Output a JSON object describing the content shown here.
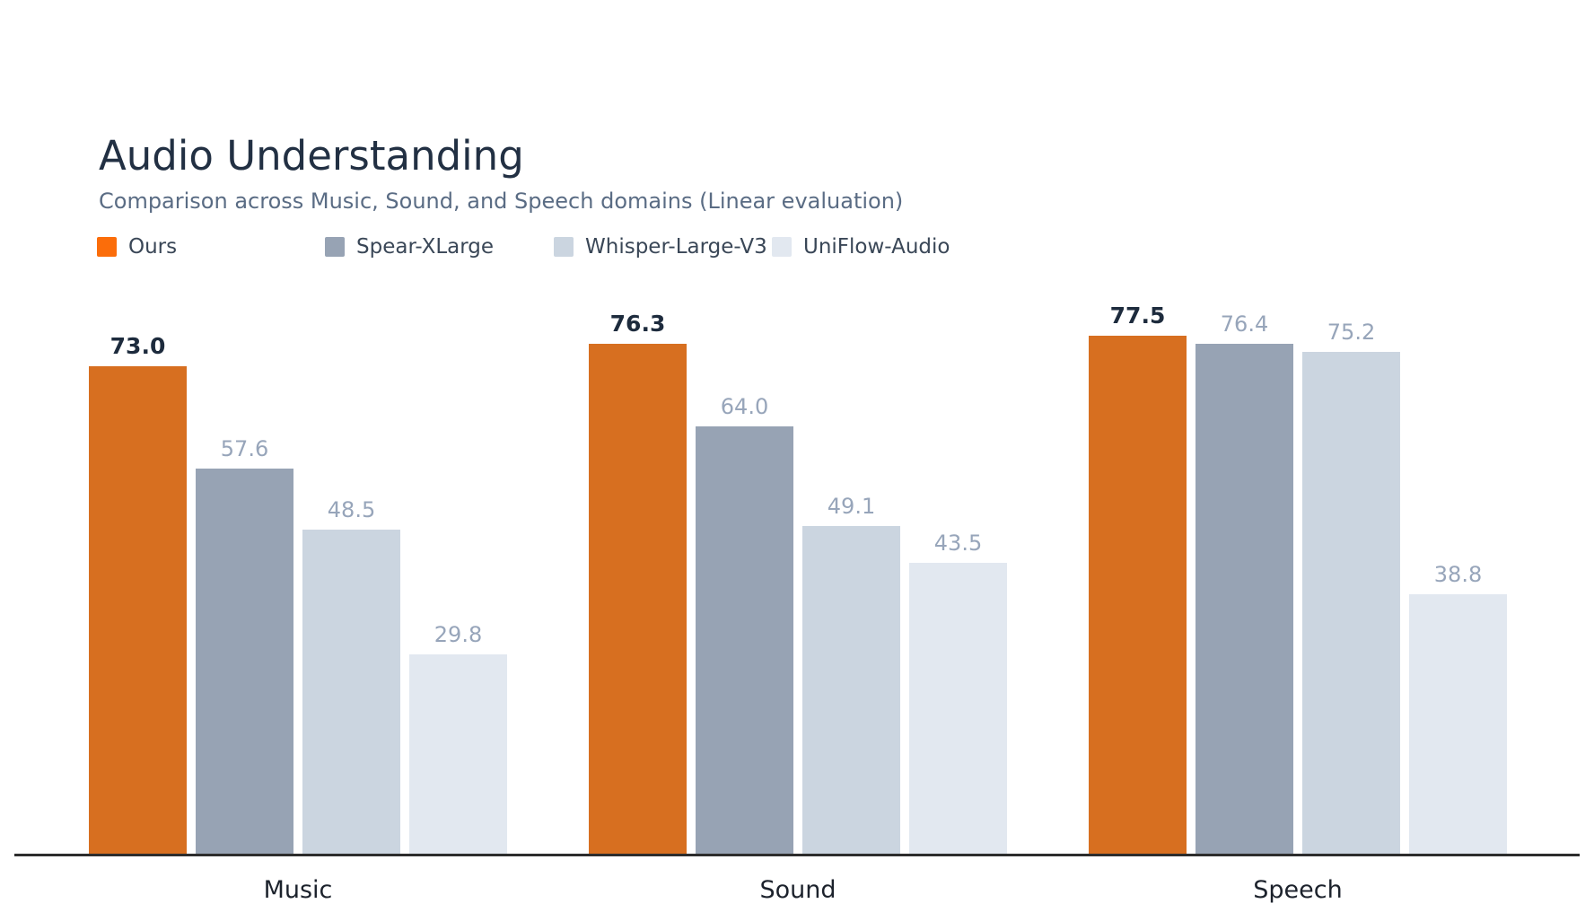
{
  "header": {
    "title": "Audio Understanding",
    "subtitle": "Comparison across Music, Sound, and Speech domains (Linear evaluation)"
  },
  "colors": {
    "background": "#FFFFFF",
    "title": "#223043",
    "subtitle": "#5A6C84",
    "legend_text": "#3A4757",
    "value_label_default": "#97A5BA",
    "value_label_emphasis": "#1D2B3D",
    "category_label": "#1C222C",
    "axis_line": "#2D2D2D",
    "bar_ours": "#D76F20",
    "bar_spear_xlarge": "#97A3B4",
    "bar_whisper_large_v3": "#CBD5E0",
    "bar_uniflow_audio": "#E2E8F0",
    "legend_swatch_ours": "#FB6D0A"
  },
  "legend": {
    "items": [
      {
        "label": "Ours",
        "swatch_color": "#FB6D0A"
      },
      {
        "label": "Spear-XLarge",
        "swatch_color": "#97A3B4"
      },
      {
        "label": "Whisper-Large-V3",
        "swatch_color": "#CBD5E0"
      },
      {
        "label": "UniFlow-Audio",
        "swatch_color": "#E2E8F0"
      }
    ]
  },
  "chart_data": {
    "type": "bar",
    "title": "Audio Understanding",
    "subtitle": "Comparison across Music, Sound, and Speech domains (Linear evaluation)",
    "categories": [
      "Music",
      "Sound",
      "Speech"
    ],
    "series": [
      {
        "name": "Ours",
        "color": "#D76F20",
        "values": [
          73.0,
          76.3,
          77.5
        ],
        "value_labels": [
          "73.0",
          "76.3",
          "77.5"
        ],
        "emphasized": true
      },
      {
        "name": "Spear-XLarge",
        "color": "#97A3B4",
        "values": [
          57.6,
          64.0,
          76.4
        ],
        "value_labels": [
          "57.6",
          "64.0",
          "76.4"
        ],
        "emphasized": false
      },
      {
        "name": "Whisper-Large-V3",
        "color": "#CBD5E0",
        "values": [
          48.5,
          49.1,
          75.2
        ],
        "value_labels": [
          "48.5",
          "49.1",
          "75.2"
        ],
        "emphasized": false
      },
      {
        "name": "UniFlow-Audio",
        "color": "#E2E8F0",
        "values": [
          29.8,
          43.5,
          38.8
        ],
        "value_labels": [
          "29.8",
          "43.5",
          "38.8"
        ],
        "emphasized": false
      }
    ],
    "ylim": [
      0,
      80
    ],
    "grid": false,
    "y_axis_visible": false,
    "x_axis_line_visible": true,
    "value_labels_shown": true,
    "legend_position": "top-left"
  }
}
